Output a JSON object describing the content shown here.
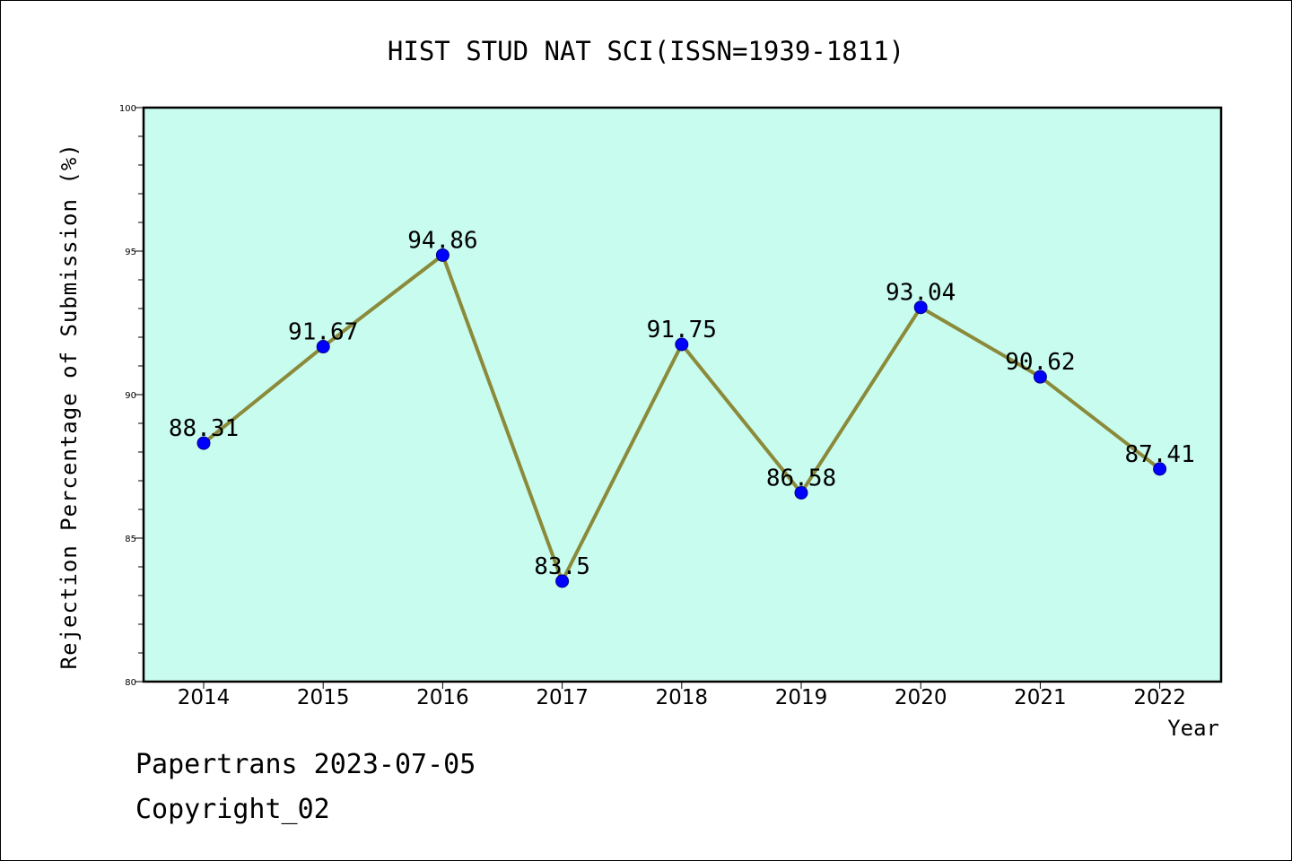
{
  "chart_data": {
    "type": "line",
    "title": "HIST STUD NAT SCI(ISSN=1939-1811)",
    "xlabel": "Year",
    "ylabel": "Rejection Percentage of Submission (%)",
    "categories": [
      "2014",
      "2015",
      "2016",
      "2017",
      "2018",
      "2019",
      "2020",
      "2021",
      "2022"
    ],
    "series": [
      {
        "values": [
          88.31,
          91.67,
          94.86,
          83.5,
          91.75,
          86.58,
          93.04,
          90.62,
          87.41
        ]
      }
    ],
    "data_labels": [
      "88.31",
      "91.67",
      "94.86",
      "83.5",
      "91.75",
      "86.58",
      "93.04",
      "90.62",
      "87.41"
    ],
    "ylim": [
      80,
      100
    ],
    "yticks": [
      80,
      85,
      90,
      95,
      100
    ],
    "grid": false,
    "colors": {
      "plot_background": "#c8fcee",
      "line": "#8b8a3a",
      "marker": "#0000ff"
    }
  },
  "footer": {
    "line1": "Papertrans 2023-07-05",
    "line2": "Copyright_02"
  }
}
